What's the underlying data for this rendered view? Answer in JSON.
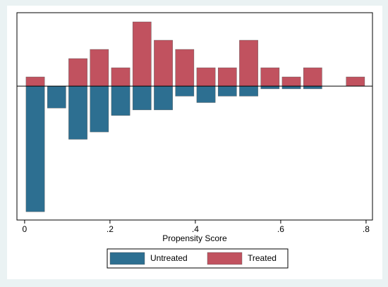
{
  "chart_data": {
    "type": "mirrored-histogram",
    "x_label": "Propensity Score",
    "bins": [
      0,
      0.05,
      0.1,
      0.15,
      0.2,
      0.25,
      0.3,
      0.35,
      0.4,
      0.45,
      0.5,
      0.55,
      0.6,
      0.65,
      0.7,
      0.75,
      0.8
    ],
    "series": [
      {
        "name": "Untreated",
        "color": "#2d6f91",
        "values": [
          -13.7,
          -2.4,
          -5.8,
          -5,
          -3.2,
          -2.6,
          -2.6,
          -1.1,
          -1.8,
          -1.1,
          -1.1,
          -0.3,
          -0.3,
          -0.3,
          0,
          0
        ]
      },
      {
        "name": "Treated",
        "color": "#c1525f",
        "values": [
          1,
          0,
          3,
          4,
          2,
          7,
          5,
          4,
          2,
          2,
          5,
          2,
          1,
          2,
          0,
          1
        ]
      }
    ],
    "xlim": [
      -0.018,
      0.815
    ],
    "ylim": [
      -14.6,
      8
    ],
    "xticks": [
      0,
      {
        "value": 0.2,
        "label": ".2"
      },
      {
        "value": 0.4,
        "label": ".4"
      },
      {
        "value": 0.6,
        "label": ".6"
      },
      {
        "value": 0.8,
        "label": ".8"
      }
    ],
    "legend": "bottom"
  }
}
